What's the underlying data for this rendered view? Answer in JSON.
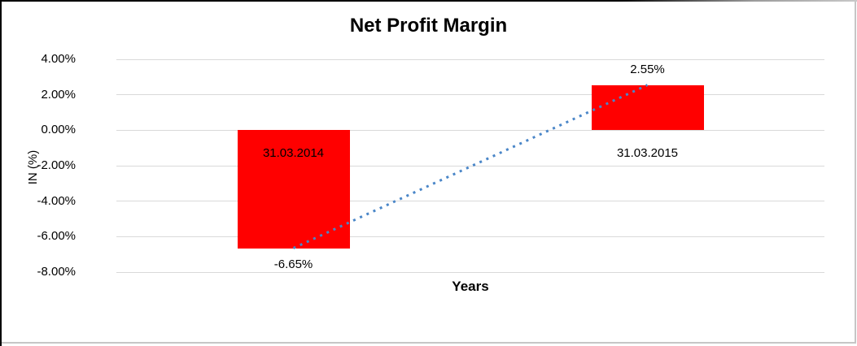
{
  "chart_data": {
    "type": "bar",
    "title": "Net Profit Margin",
    "xlabel": "Years",
    "ylabel": "IN (%)",
    "categories": [
      "31.03.2014",
      "31.03.2015"
    ],
    "values": [
      -6.65,
      2.55
    ],
    "data_labels": [
      "-6.65%",
      "2.55%"
    ],
    "yticks": [
      {
        "label": "4.00%",
        "value": 4
      },
      {
        "label": "2.00%",
        "value": 2
      },
      {
        "label": "0.00%",
        "value": 0
      },
      {
        "label": "-2.00%",
        "value": -2
      },
      {
        "label": "-4.00%",
        "value": -4
      },
      {
        "label": "-6.00%",
        "value": -6
      },
      {
        "label": "-8.00%",
        "value": -8
      }
    ],
    "ylim": [
      -8,
      4
    ],
    "grid": true,
    "legend_position": "none",
    "bar_color": "#FF0000",
    "gridline_color": "#D9D9D9",
    "text_color": "#000000",
    "trendline": {
      "type": "linear",
      "style": "dotted",
      "color": "#4A86C8",
      "from_value": -6.65,
      "to_value": 2.55
    }
  }
}
